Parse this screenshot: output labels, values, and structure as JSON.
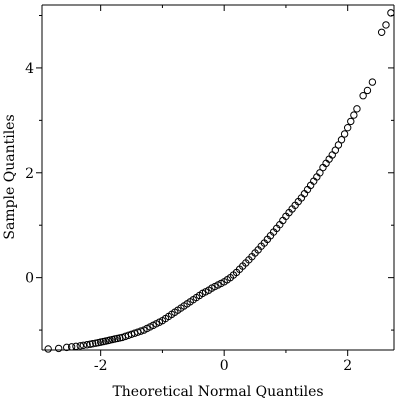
{
  "chart_data": {
    "type": "scatter",
    "title": "",
    "xlabel": "Theoretical Normal Quantiles",
    "ylabel": "Sample Quantiles",
    "xlim": [
      -2.95,
      2.75
    ],
    "ylim": [
      -1.38,
      5.2
    ],
    "xticks": [
      -2,
      0,
      2
    ],
    "xtick_labels": [
      "-2",
      "0",
      "2"
    ],
    "yticks": [
      0,
      2,
      4
    ],
    "ytick_labels": [
      "0",
      "2",
      "4"
    ],
    "grid": false,
    "legend": "none",
    "marker": "open-circle",
    "point_color": "#000000",
    "series": [
      {
        "x": [
          -2.85,
          -2.68,
          -2.55,
          -2.47,
          -2.4,
          -2.33,
          -2.28,
          -2.22,
          -2.17,
          -2.13,
          -2.08,
          -2.04,
          -2.0,
          -1.96,
          -1.92,
          -1.88,
          -1.85,
          -1.81,
          -1.77,
          -1.73,
          -1.69,
          -1.65,
          -1.6,
          -1.55,
          -1.5,
          -1.45,
          -1.4,
          -1.35,
          -1.3,
          -1.25,
          -1.2,
          -1.15,
          -1.1,
          -1.05,
          -1.0,
          -0.95,
          -0.9,
          -0.85,
          -0.8,
          -0.75,
          -0.7,
          -0.65,
          -0.6,
          -0.55,
          -0.5,
          -0.45,
          -0.4,
          -0.35,
          -0.3,
          -0.25,
          -0.2,
          -0.15,
          -0.1,
          -0.05,
          0.0,
          0.05,
          0.1,
          0.15,
          0.2,
          0.25,
          0.3,
          0.35,
          0.4,
          0.45,
          0.5,
          0.55,
          0.6,
          0.65,
          0.7,
          0.75,
          0.8,
          0.85,
          0.9,
          0.95,
          1.0,
          1.05,
          1.1,
          1.15,
          1.2,
          1.25,
          1.3,
          1.35,
          1.4,
          1.45,
          1.5,
          1.55,
          1.6,
          1.65,
          1.7,
          1.75,
          1.8,
          1.85,
          1.9,
          1.95,
          2.0,
          2.05,
          2.1,
          2.15,
          2.25,
          2.32,
          2.4,
          2.55,
          2.62,
          2.7
        ],
        "y": [
          -1.36,
          -1.35,
          -1.33,
          -1.32,
          -1.31,
          -1.3,
          -1.29,
          -1.28,
          -1.27,
          -1.26,
          -1.25,
          -1.24,
          -1.23,
          -1.22,
          -1.21,
          -1.2,
          -1.19,
          -1.18,
          -1.17,
          -1.16,
          -1.15,
          -1.14,
          -1.12,
          -1.1,
          -1.08,
          -1.06,
          -1.04,
          -1.02,
          -1.0,
          -0.97,
          -0.94,
          -0.91,
          -0.88,
          -0.85,
          -0.82,
          -0.78,
          -0.74,
          -0.7,
          -0.66,
          -0.62,
          -0.58,
          -0.54,
          -0.5,
          -0.46,
          -0.42,
          -0.38,
          -0.34,
          -0.3,
          -0.27,
          -0.24,
          -0.2,
          -0.17,
          -0.14,
          -0.11,
          -0.08,
          -0.04,
          0.0,
          0.05,
          0.1,
          0.16,
          0.22,
          0.28,
          0.34,
          0.4,
          0.47,
          0.53,
          0.6,
          0.66,
          0.73,
          0.8,
          0.87,
          0.94,
          1.01,
          1.09,
          1.17,
          1.24,
          1.31,
          1.38,
          1.45,
          1.52,
          1.6,
          1.68,
          1.76,
          1.84,
          1.92,
          2.0,
          2.1,
          2.18,
          2.26,
          2.34,
          2.43,
          2.53,
          2.63,
          2.74,
          2.86,
          2.98,
          3.1,
          3.22,
          3.47,
          3.57,
          3.73,
          4.68,
          4.82,
          5.05
        ]
      }
    ]
  }
}
